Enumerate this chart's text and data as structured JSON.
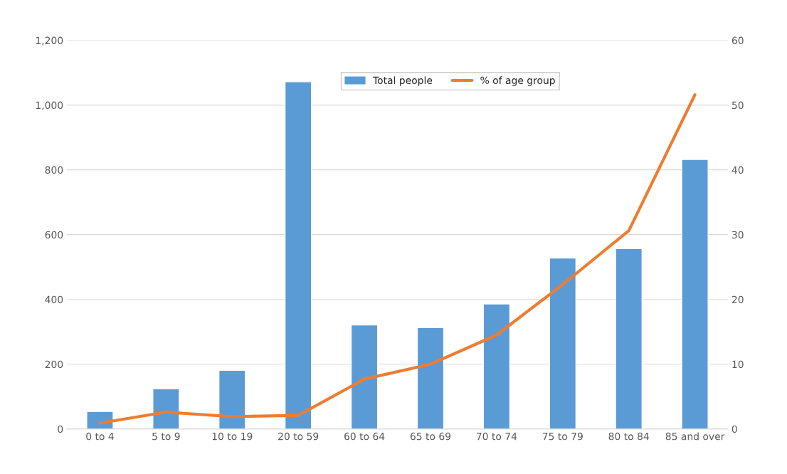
{
  "chart_data": {
    "type": "bar",
    "categories": [
      "0 to 4",
      "5 to 9",
      "10 to 19",
      "20 to 59",
      "60 to 64",
      "65 to 69",
      "70 to 74",
      "75 to 79",
      "80 to 84",
      "85 and over"
    ],
    "series": [
      {
        "name": "Total people",
        "color": "#5b9bd5",
        "values": [
          54,
          124,
          181,
          1072,
          321,
          313,
          386,
          528,
          557,
          832
        ]
      },
      {
        "name": "% of age group",
        "type": "line",
        "axis": "y2",
        "color": "#ed7d31",
        "values": [
          0.9,
          2.6,
          1.9,
          2.1,
          7.7,
          10.0,
          14.5,
          22.3,
          30.6,
          51.6
        ]
      }
    ],
    "ylim": [
      0,
      1200
    ],
    "yticks": [
      0,
      {
        "value": 200,
        "label": "200"
      },
      {
        "value": 400,
        "label": "400"
      },
      {
        "value": 600,
        "label": "600"
      },
      {
        "value": 800,
        "label": "800"
      },
      {
        "value": 1000,
        "label": "1,000"
      },
      {
        "value": 1200,
        "label": "1,200"
      }
    ],
    "y2lim": [
      0,
      60
    ],
    "y2ticks": [
      0,
      10,
      20,
      30,
      40,
      50,
      60
    ],
    "grid": "y",
    "legend": "top right",
    "marker": "none",
    "line_style": "solid"
  }
}
